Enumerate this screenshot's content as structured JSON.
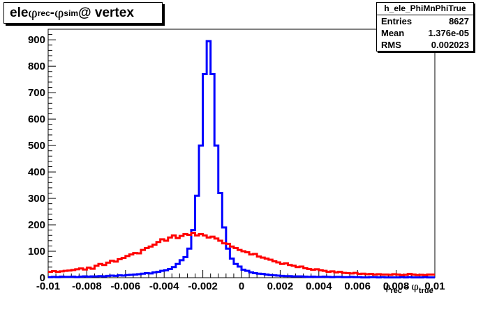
{
  "title": {
    "prefix": "ele ",
    "sym1": "φ",
    "sub1": "rec",
    "mid": " - ",
    "sym2": "φ",
    "sub2": "sim",
    "suffix": " @ vertex"
  },
  "stats": {
    "name": "h_ele_PhiMnPhiTrue",
    "rows": [
      {
        "label": "Entries",
        "value": "8627"
      },
      {
        "label": "Mean",
        "value": "1.376e-05"
      },
      {
        "label": "RMS",
        "value": "0.002023"
      }
    ]
  },
  "xlabel": {
    "sym1": "φ",
    "sub1": "rec",
    "mid": " - ",
    "sym2": "φ",
    "sub2": "true"
  },
  "chart_data": {
    "type": "line",
    "xlim": [
      -0.01,
      0.01
    ],
    "ylim": [
      0,
      940
    ],
    "x_ticks": [
      "-0.01",
      "-0.008",
      "-0.006",
      "-0.004",
      "-0.002",
      "0",
      "0.002",
      "0.004",
      "0.006",
      "0.008",
      "0.01"
    ],
    "x_tick_values": [
      -0.01,
      -0.008,
      -0.006,
      -0.004,
      -0.002,
      0,
      0.002,
      0.004,
      0.006,
      0.008,
      0.01
    ],
    "y_ticks": [
      "0",
      "100",
      "200",
      "300",
      "400",
      "500",
      "600",
      "700",
      "800",
      "900"
    ],
    "y_tick_values": [
      0,
      100,
      200,
      300,
      400,
      500,
      600,
      700,
      800,
      900
    ],
    "bin_width": 0.0002,
    "bin_start": -0.01,
    "series": [
      {
        "color": "#0000ff",
        "values": [
          2,
          3,
          2,
          4,
          3,
          3,
          4,
          2,
          4,
          5,
          4,
          5,
          5,
          6,
          5,
          7,
          8,
          7,
          9,
          8,
          10,
          11,
          12,
          13,
          15,
          17,
          16,
          20,
          22,
          26,
          28,
          33,
          40,
          52,
          66,
          78,
          110,
          180,
          310,
          500,
          770,
          895,
          770,
          500,
          320,
          190,
          110,
          72,
          52,
          42,
          30,
          26,
          20,
          17,
          15,
          14,
          12,
          10,
          9,
          8,
          7,
          6,
          6,
          5,
          5,
          5,
          4,
          3,
          4,
          3,
          3,
          4,
          3,
          2,
          3,
          3,
          2,
          2,
          3,
          2,
          2,
          1,
          1,
          2,
          2,
          1,
          2,
          1,
          1,
          1,
          1,
          2,
          1,
          2,
          1,
          1,
          1,
          2,
          1,
          1
        ]
      },
      {
        "color": "#ff0000",
        "values": [
          22,
          25,
          22,
          24,
          26,
          27,
          29,
          32,
          35,
          31,
          38,
          34,
          45,
          52,
          48,
          57,
          64,
          61,
          70,
          75,
          82,
          88,
          93,
          92,
          105,
          112,
          118,
          125,
          135,
          145,
          140,
          152,
          160,
          150,
          158,
          165,
          162,
          170,
          160,
          165,
          160,
          152,
          155,
          148,
          140,
          130,
          128,
          118,
          112,
          105,
          100,
          96,
          88,
          90,
          80,
          76,
          72,
          68,
          62,
          58,
          52,
          54,
          48,
          45,
          40,
          42,
          36,
          33,
          30,
          32,
          28,
          26,
          22,
          24,
          20,
          22,
          18,
          17,
          16,
          18,
          14,
          15,
          13,
          14,
          12,
          13,
          12,
          12,
          11,
          13,
          12,
          10,
          11,
          14,
          12,
          10,
          11,
          10,
          12,
          12
        ]
      }
    ]
  }
}
